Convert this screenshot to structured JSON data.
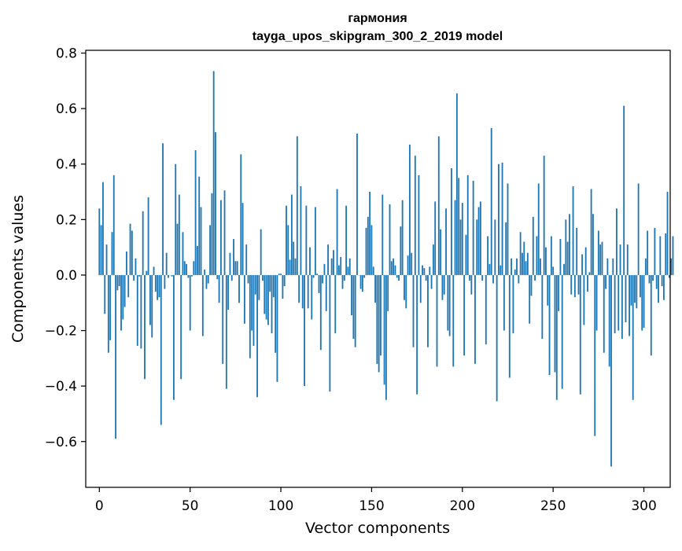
{
  "chart_data": {
    "type": "bar",
    "title": "гармония",
    "subtitle": "tayga_upos_skipgram_300_2_2019 model",
    "xlabel": "Vector components",
    "ylabel": "Components values",
    "xlim": [
      -7.5,
      314.5
    ],
    "ylim": [
      -0.765,
      0.81
    ],
    "xticks": [
      0,
      50,
      100,
      150,
      200,
      250,
      300
    ],
    "xtick_labels": [
      "0",
      "50",
      "100",
      "150",
      "200",
      "250",
      "300"
    ],
    "yticks": [
      -0.6,
      -0.4,
      -0.2,
      0.0,
      0.2,
      0.4,
      0.6,
      0.8
    ],
    "ytick_labels": [
      "−0.6",
      "−0.4",
      "−0.2",
      "0.0",
      "0.2",
      "0.4",
      "0.6",
      "0.8"
    ],
    "grid": false,
    "bar_color": "#1f77b4",
    "values": [
      0.24,
      0.18,
      0.335,
      -0.14,
      0.11,
      -0.28,
      -0.235,
      0.155,
      0.36,
      -0.59,
      -0.055,
      -0.04,
      -0.2,
      -0.16,
      -0.115,
      0.085,
      -0.08,
      0.185,
      0.16,
      -0.02,
      0.06,
      -0.255,
      -0.005,
      -0.265,
      0.23,
      -0.375,
      0.015,
      0.28,
      -0.18,
      -0.225,
      0.03,
      -0.06,
      -0.09,
      -0.08,
      -0.54,
      0.475,
      -0.05,
      0.08,
      -0.01,
      0.0,
      -0.005,
      -0.45,
      0.4,
      0.185,
      0.29,
      -0.375,
      0.155,
      0.05,
      0.04,
      -0.01,
      -0.2,
      -0.005,
      0.05,
      0.45,
      0.105,
      0.355,
      0.245,
      -0.22,
      0.02,
      -0.05,
      -0.03,
      0.18,
      0.295,
      0.735,
      0.515,
      -0.015,
      -0.1,
      0.27,
      -0.32,
      0.305,
      -0.41,
      -0.125,
      0.08,
      -0.02,
      0.13,
      0.05,
      0.05,
      -0.1,
      0.435,
      0.26,
      -0.175,
      0.11,
      -0.03,
      -0.3,
      -0.2,
      -0.255,
      -0.07,
      -0.44,
      -0.09,
      0.165,
      -0.02,
      -0.14,
      -0.16,
      -0.18,
      -0.06,
      -0.21,
      -0.08,
      -0.28,
      -0.385,
      0.005,
      0.005,
      -0.085,
      -0.04,
      0.25,
      0.18,
      0.055,
      0.29,
      0.12,
      0.06,
      0.5,
      -0.1,
      0.32,
      -0.12,
      -0.4,
      0.25,
      -0.12,
      0.1,
      -0.16,
      -0.01,
      0.245,
      0.005,
      -0.065,
      -0.27,
      -0.03,
      0.04,
      -0.13,
      0.11,
      -0.42,
      0.06,
      0.09,
      -0.21,
      0.31,
      0.035,
      0.065,
      -0.05,
      -0.02,
      0.25,
      0.03,
      0.06,
      -0.145,
      -0.23,
      -0.26,
      0.51,
      0.0,
      -0.05,
      -0.06,
      -0.01,
      0.17,
      0.21,
      0.3,
      0.18,
      0.03,
      -0.1,
      -0.32,
      -0.35,
      -0.29,
      0.29,
      -0.395,
      -0.45,
      -0.13,
      0.255,
      0.05,
      0.06,
      0.035,
      -0.01,
      -0.02,
      0.175,
      0.27,
      -0.09,
      -0.12,
      0.07,
      0.47,
      0.08,
      -0.26,
      0.43,
      -0.43,
      0.36,
      -0.1,
      0.035,
      0.025,
      -0.02,
      -0.26,
      0.03,
      -0.05,
      0.11,
      0.265,
      -0.33,
      0.5,
      0.165,
      -0.09,
      -0.07,
      0.24,
      -0.2,
      -0.22,
      0.385,
      -0.33,
      0.27,
      0.655,
      0.35,
      0.2,
      0.26,
      -0.29,
      0.145,
      0.36,
      -0.02,
      -0.07,
      0.34,
      -0.32,
      0.2,
      0.245,
      0.265,
      -0.02,
      0.0,
      -0.25,
      0.14,
      0.04,
      0.53,
      -0.03,
      0.2,
      -0.455,
      0.4,
      0.035,
      0.405,
      -0.2,
      0.19,
      0.33,
      -0.37,
      0.06,
      -0.21,
      0.02,
      0.06,
      -0.03,
      0.155,
      0.08,
      0.12,
      0.05,
      0.08,
      -0.175,
      -0.075,
      0.21,
      -0.02,
      0.14,
      0.33,
      0.06,
      -0.23,
      0.43,
      0.1,
      -0.11,
      -0.36,
      0.14,
      0.03,
      -0.35,
      -0.45,
      -0.13,
      0.13,
      -0.41,
      0.04,
      0.2,
      0.12,
      0.22,
      -0.07,
      0.32,
      -0.08,
      0.17,
      -0.07,
      -0.43,
      0.075,
      -0.18,
      0.1,
      -0.06,
      0.01,
      0.31,
      0.22,
      -0.58,
      -0.2,
      0.16,
      0.11,
      0.12,
      -0.28,
      -0.05,
      0.06,
      -0.33,
      -0.69,
      0.06,
      -0.21,
      0.24,
      -0.2,
      0.11,
      -0.23,
      0.61,
      -0.17,
      0.11,
      -0.22,
      -0.11,
      -0.45,
      -0.1,
      -0.12,
      0.33,
      -0.08,
      -0.2,
      -0.19,
      0.06,
      0.16,
      -0.03,
      -0.29,
      -0.02,
      0.17,
      -0.05,
      -0.1,
      0.14,
      -0.04,
      -0.09,
      0.15,
      0.3,
      -0.01,
      0.06,
      0.14
    ]
  }
}
